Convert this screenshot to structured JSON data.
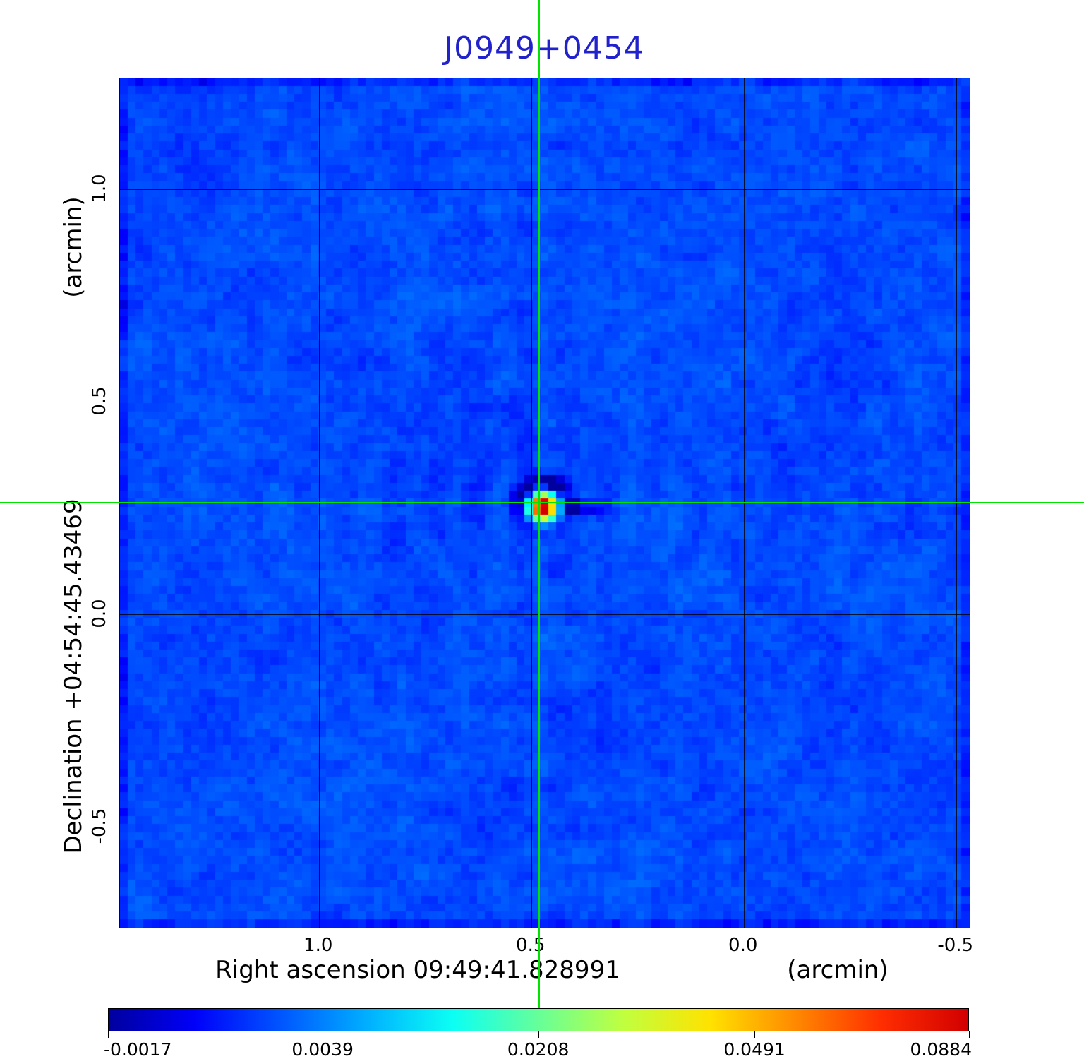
{
  "title": {
    "text": "J0949+0454"
  },
  "axes": {
    "x_label": "Right ascension  09:49:41.828991",
    "x_unit": "(arcmin)",
    "y_label": "Declination  +04:54:45.43469",
    "y_unit": "(arcmin)"
  },
  "colors": {
    "title": "#2222cc",
    "crosshair": "#00e400",
    "grid": "#000000",
    "text": "#000000",
    "background": "#ffffff",
    "image_background": "#0a45f2",
    "colorbar_gradient": [
      "#00009e",
      "#0000f9",
      "#0055ff",
      "#00afff",
      "#0bfff4",
      "#66ff99",
      "#c1ff3e",
      "#ffe200",
      "#ff8800",
      "#ff2d00",
      "#d10000"
    ]
  },
  "chart_data": {
    "type": "heatmap",
    "title": "J0949+0454",
    "xlabel": "Right ascension  09:49:41.828991 (arcmin)",
    "ylabel": "Declination  +04:54:45.43469 (arcmin)",
    "x_tick_labels": [
      "1.0",
      "0.5",
      "0.0",
      "-0.5"
    ],
    "x_tick_values": [
      1.0,
      0.5,
      0.0,
      -0.5
    ],
    "y_tick_labels": [
      "1.0",
      "0.5",
      "0.0",
      "-0.5"
    ],
    "y_tick_values": [
      1.0,
      0.5,
      0.0,
      -0.5
    ],
    "x_range": [
      1.468,
      -0.532
    ],
    "y_range": [
      1.261,
      -0.738
    ],
    "grid": true,
    "colormap": "jet",
    "color_scale": "squared",
    "value_min": -0.0017,
    "value_max": 0.0884,
    "colorbar_tick_labels": [
      "-0.0017",
      "0.0039",
      "0.0208",
      "0.0491",
      "0.0884"
    ],
    "colorbar_tick_values": [
      -0.0017,
      0.0039,
      0.0208,
      0.0491,
      0.0884
    ],
    "background_mean_value": 0.0015,
    "source": {
      "x_arcmin": 0.48,
      "y_arcmin": 0.261,
      "peak_value": 0.0884,
      "crosshair": true
    },
    "legend_position": "bottom-colorbar"
  }
}
